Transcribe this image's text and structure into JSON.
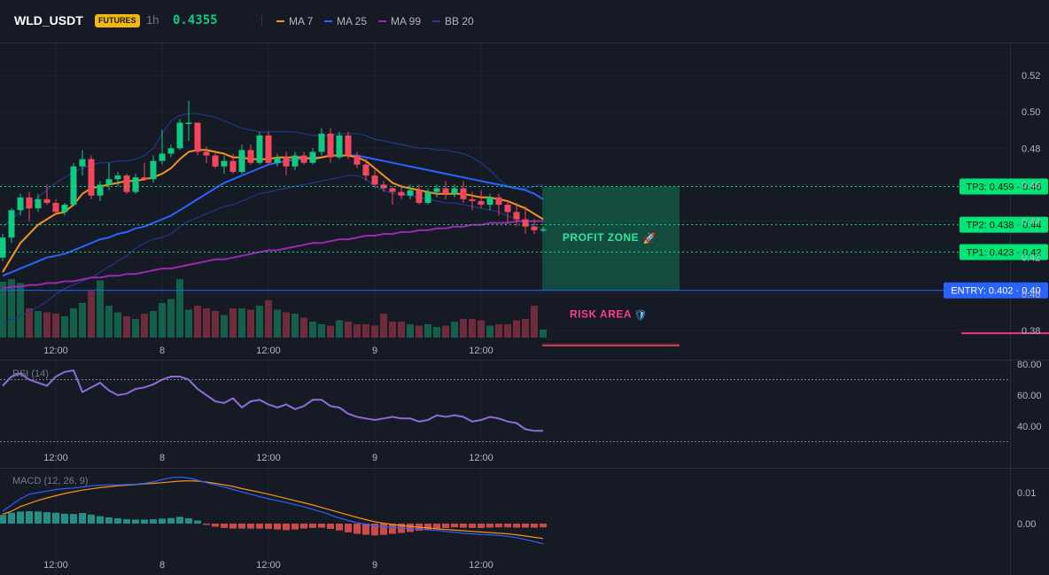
{
  "header": {
    "symbol": "WLD_USDT",
    "badge": "FUTURES",
    "interval": "1h",
    "price": "0.4355",
    "legend": [
      {
        "label": "MA 7",
        "color": "#f7931a"
      },
      {
        "label": "MA 25",
        "color": "#2962ff"
      },
      {
        "label": "MA 99",
        "color": "#9c27b0"
      },
      {
        "label": "BB 20",
        "color": "#1e3a8a"
      }
    ]
  },
  "colors": {
    "up": "#0ecb81",
    "down": "#f6465d",
    "ma7": "#f7931a",
    "ma25": "#2962ff",
    "ma99": "#9c27b0",
    "bb": "#1e3a8a",
    "tp": "#00e676",
    "entry": "#2962ff",
    "profit": "#0ecb81",
    "risk": "#f6465d",
    "rsi": "#8e6bd8",
    "macd": "#2962ff",
    "signal": "#f7931a"
  },
  "chart_data": [
    {
      "type": "candlestick",
      "name": "price",
      "yticks": [
        "0.52",
        "0.50",
        "0.48",
        "0.46",
        "0.44",
        "0.42",
        "0.40",
        "0.38"
      ],
      "ylim": [
        0.374,
        0.537
      ],
      "xticks": [
        {
          "label": "12:00",
          "index": 6
        },
        {
          "label": "8",
          "index": 18
        },
        {
          "label": "12:00",
          "index": 30
        },
        {
          "label": "9",
          "index": 42
        },
        {
          "label": "12:00",
          "index": 54
        }
      ],
      "candles": [
        [
          0.42,
          0.433,
          0.418,
          0.431
        ],
        [
          0.431,
          0.447,
          0.428,
          0.446
        ],
        [
          0.446,
          0.455,
          0.443,
          0.453
        ],
        [
          0.453,
          0.456,
          0.44,
          0.447
        ],
        [
          0.447,
          0.455,
          0.445,
          0.452
        ],
        [
          0.452,
          0.46,
          0.449,
          0.45
        ],
        [
          0.45,
          0.452,
          0.444,
          0.445
        ],
        [
          0.445,
          0.45,
          0.443,
          0.449
        ],
        [
          0.449,
          0.472,
          0.448,
          0.47
        ],
        [
          0.47,
          0.479,
          0.465,
          0.474
        ],
        [
          0.474,
          0.476,
          0.452,
          0.454
        ],
        [
          0.454,
          0.462,
          0.451,
          0.46
        ],
        [
          0.46,
          0.472,
          0.457,
          0.463
        ],
        [
          0.463,
          0.467,
          0.459,
          0.465
        ],
        [
          0.465,
          0.466,
          0.455,
          0.456
        ],
        [
          0.456,
          0.466,
          0.455,
          0.464
        ],
        [
          0.464,
          0.472,
          0.462,
          0.463
        ],
        [
          0.463,
          0.476,
          0.461,
          0.473
        ],
        [
          0.473,
          0.49,
          0.471,
          0.477
        ],
        [
          0.477,
          0.482,
          0.475,
          0.48
        ],
        [
          0.48,
          0.496,
          0.479,
          0.494
        ],
        [
          0.494,
          0.506,
          0.484,
          0.494
        ],
        [
          0.494,
          0.493,
          0.476,
          0.478
        ],
        [
          0.478,
          0.481,
          0.472,
          0.476
        ],
        [
          0.476,
          0.478,
          0.469,
          0.47
        ],
        [
          0.47,
          0.476,
          0.466,
          0.473
        ],
        [
          0.473,
          0.477,
          0.466,
          0.467
        ],
        [
          0.467,
          0.482,
          0.466,
          0.479
        ],
        [
          0.479,
          0.482,
          0.471,
          0.472
        ],
        [
          0.472,
          0.489,
          0.471,
          0.487
        ],
        [
          0.487,
          0.489,
          0.471,
          0.472
        ],
        [
          0.472,
          0.477,
          0.47,
          0.475
        ],
        [
          0.475,
          0.478,
          0.465,
          0.47
        ],
        [
          0.47,
          0.478,
          0.468,
          0.476
        ],
        [
          0.476,
          0.478,
          0.471,
          0.472
        ],
        [
          0.472,
          0.48,
          0.471,
          0.478
        ],
        [
          0.478,
          0.491,
          0.476,
          0.488
        ],
        [
          0.488,
          0.491,
          0.472,
          0.475
        ],
        [
          0.475,
          0.489,
          0.474,
          0.487
        ],
        [
          0.487,
          0.489,
          0.474,
          0.476
        ],
        [
          0.476,
          0.478,
          0.469,
          0.471
        ],
        [
          0.471,
          0.474,
          0.462,
          0.465
        ],
        [
          0.465,
          0.468,
          0.458,
          0.46
        ],
        [
          0.46,
          0.462,
          0.456,
          0.458
        ],
        [
          0.458,
          0.459,
          0.449,
          0.456
        ],
        [
          0.456,
          0.46,
          0.452,
          0.454
        ],
        [
          0.454,
          0.46,
          0.452,
          0.457
        ],
        [
          0.457,
          0.46,
          0.449,
          0.45
        ],
        [
          0.45,
          0.458,
          0.449,
          0.456
        ],
        [
          0.456,
          0.46,
          0.453,
          0.458
        ],
        [
          0.458,
          0.462,
          0.452,
          0.455
        ],
        [
          0.455,
          0.46,
          0.453,
          0.458
        ],
        [
          0.458,
          0.462,
          0.45,
          0.452
        ],
        [
          0.452,
          0.456,
          0.446,
          0.451
        ],
        [
          0.451,
          0.457,
          0.447,
          0.449
        ],
        [
          0.449,
          0.455,
          0.446,
          0.453
        ],
        [
          0.453,
          0.455,
          0.443,
          0.449
        ],
        [
          0.449,
          0.451,
          0.439,
          0.445
        ],
        [
          0.445,
          0.45,
          0.437,
          0.441
        ],
        [
          0.441,
          0.448,
          0.433,
          0.437
        ],
        [
          0.437,
          0.441,
          0.433,
          0.435
        ],
        [
          0.435,
          0.437,
          0.434,
          0.4355
        ]
      ],
      "volume": [
        42,
        44,
        41,
        22,
        20,
        19,
        18,
        16,
        22,
        26,
        35,
        43,
        24,
        19,
        16,
        14,
        18,
        20,
        26,
        29,
        44,
        21,
        24,
        22,
        20,
        17,
        22,
        22,
        21,
        24,
        28,
        21,
        19,
        18,
        15,
        12,
        10,
        9,
        13,
        12,
        10,
        10,
        9,
        18,
        12,
        12,
        10,
        9,
        10,
        8,
        9,
        12,
        14,
        14,
        13,
        9,
        10,
        10,
        13,
        14,
        24,
        6
      ],
      "ma7": [
        0.412,
        0.42,
        0.428,
        0.433,
        0.438,
        0.441,
        0.444,
        0.445,
        0.449,
        0.455,
        0.458,
        0.459,
        0.46,
        0.461,
        0.462,
        0.462,
        0.463,
        0.464,
        0.466,
        0.469,
        0.474,
        0.478,
        0.479,
        0.479,
        0.478,
        0.477,
        0.475,
        0.475,
        0.474,
        0.474,
        0.474,
        0.475,
        0.475,
        0.475,
        0.475,
        0.474,
        0.475,
        0.476,
        0.476,
        0.476,
        0.475,
        0.473,
        0.469,
        0.465,
        0.461,
        0.459,
        0.458,
        0.457,
        0.456,
        0.455,
        0.455,
        0.455,
        0.455,
        0.454,
        0.453,
        0.453,
        0.452,
        0.451,
        0.449,
        0.447,
        0.444,
        0.441
      ],
      "ma25": [
        0.41,
        0.412,
        0.414,
        0.416,
        0.418,
        0.42,
        0.421,
        0.422,
        0.424,
        0.426,
        0.428,
        0.43,
        0.431,
        0.433,
        0.434,
        0.436,
        0.437,
        0.439,
        0.441,
        0.443,
        0.446,
        0.449,
        0.452,
        0.455,
        0.458,
        0.461,
        0.463,
        0.465,
        0.467,
        0.469,
        0.471,
        0.472,
        0.473,
        0.474,
        0.474,
        0.475,
        0.475,
        0.476,
        0.476,
        0.476,
        0.476,
        0.475,
        0.474,
        0.473,
        0.472,
        0.471,
        0.47,
        0.469,
        0.468,
        0.467,
        0.466,
        0.465,
        0.464,
        0.463,
        0.462,
        0.461,
        0.46,
        0.459,
        0.458,
        0.457,
        0.455,
        0.452
      ],
      "ma99": [
        0.403,
        0.404,
        0.404,
        0.405,
        0.405,
        0.406,
        0.406,
        0.407,
        0.407,
        0.408,
        0.409,
        0.409,
        0.41,
        0.41,
        0.411,
        0.411,
        0.412,
        0.413,
        0.414,
        0.414,
        0.415,
        0.416,
        0.417,
        0.418,
        0.419,
        0.419,
        0.42,
        0.421,
        0.422,
        0.423,
        0.424,
        0.424,
        0.425,
        0.426,
        0.427,
        0.428,
        0.428,
        0.429,
        0.43,
        0.43,
        0.431,
        0.432,
        0.432,
        0.433,
        0.433,
        0.434,
        0.434,
        0.435,
        0.435,
        0.436,
        0.436,
        0.437,
        0.437,
        0.438,
        0.438,
        0.439,
        0.439,
        0.439,
        0.44,
        0.44,
        0.44,
        0.44
      ],
      "bb_upper": [
        0.437,
        0.441,
        0.445,
        0.449,
        0.453,
        0.457,
        0.461,
        0.464,
        0.467,
        0.469,
        0.471,
        0.472,
        0.472,
        0.473,
        0.473,
        0.474,
        0.476,
        0.48,
        0.488,
        0.495,
        0.498,
        0.499,
        0.499,
        0.498,
        0.497,
        0.495,
        0.493,
        0.491,
        0.49,
        0.489,
        0.489,
        0.489,
        0.489,
        0.489,
        0.488,
        0.487,
        0.487,
        0.487,
        0.488,
        0.488,
        0.488,
        0.487,
        0.485,
        0.484,
        0.483,
        0.482,
        0.481,
        0.48,
        0.48,
        0.479,
        0.479,
        0.478,
        0.477,
        0.475,
        0.472,
        0.468,
        0.463,
        0.459,
        0.458,
        0.458,
        0.459,
        0.46
      ],
      "bb_lower": [
        0.384,
        0.386,
        0.388,
        0.39,
        0.393,
        0.396,
        0.4,
        0.403,
        0.405,
        0.407,
        0.409,
        0.412,
        0.415,
        0.418,
        0.421,
        0.425,
        0.428,
        0.43,
        0.431,
        0.433,
        0.437,
        0.44,
        0.442,
        0.444,
        0.446,
        0.448,
        0.449,
        0.451,
        0.453,
        0.455,
        0.456,
        0.457,
        0.458,
        0.459,
        0.46,
        0.461,
        0.462,
        0.463,
        0.464,
        0.465,
        0.465,
        0.463,
        0.459,
        0.457,
        0.455,
        0.455,
        0.454,
        0.453,
        0.452,
        0.451,
        0.45,
        0.45,
        0.449,
        0.448,
        0.447,
        0.446,
        0.445,
        0.443,
        0.441,
        0.439,
        0.437,
        0.436
      ]
    },
    {
      "type": "line",
      "name": "RSI (14)",
      "yticks": [
        "80.00",
        "60.00",
        "40.00"
      ],
      "ylim": [
        28,
        80
      ],
      "levels": [
        70,
        30
      ],
      "xticks": [
        {
          "label": "12:00",
          "index": 6
        },
        {
          "label": "8",
          "index": 18
        },
        {
          "label": "12:00",
          "index": 30
        },
        {
          "label": "9",
          "index": 42
        },
        {
          "label": "12:00",
          "index": 54
        }
      ],
      "values": [
        66,
        72,
        74,
        70,
        68,
        66,
        72,
        75,
        76,
        62,
        65,
        68,
        63,
        60,
        61,
        64,
        65,
        67,
        70,
        72,
        72,
        70,
        64,
        60,
        56,
        55,
        58,
        52,
        56,
        57,
        54,
        52,
        54,
        51,
        53,
        57,
        57,
        53,
        52,
        48,
        46,
        45,
        44,
        45,
        46,
        45,
        45,
        43,
        44,
        47,
        46,
        47,
        46,
        43,
        44,
        46,
        45,
        43,
        42,
        38,
        37,
        37
      ]
    },
    {
      "type": "bar+line",
      "name": "MACD (12, 26, 9)",
      "yticks": [
        "0.01",
        "0.00"
      ],
      "ylim": [
        -0.009,
        0.018
      ],
      "histogram": [
        0.0028,
        0.0035,
        0.0039,
        0.004,
        0.0039,
        0.0037,
        0.0035,
        0.0032,
        0.0031,
        0.0034,
        0.0029,
        0.0024,
        0.002,
        0.0017,
        0.0014,
        0.0013,
        0.0013,
        0.0014,
        0.0016,
        0.0018,
        0.0022,
        0.0017,
        0.001,
        -0.0004,
        -0.001,
        -0.0014,
        -0.0016,
        -0.0016,
        -0.0016,
        -0.0016,
        -0.0017,
        -0.0019,
        -0.0021,
        -0.0019,
        -0.0016,
        -0.0014,
        -0.0013,
        -0.0017,
        -0.0022,
        -0.0028,
        -0.0033,
        -0.0036,
        -0.0038,
        -0.0036,
        -0.0033,
        -0.003,
        -0.0027,
        -0.0023,
        -0.0019,
        -0.0016,
        -0.0014,
        -0.0012,
        -0.0013,
        -0.0014,
        -0.0014,
        -0.0013,
        -0.0012,
        -0.0012,
        -0.0013,
        -0.0013,
        -0.0013,
        -0.0012
      ],
      "macd": [
        0.004,
        0.006,
        0.008,
        0.0095,
        0.01,
        0.0105,
        0.011,
        0.0113,
        0.0115,
        0.0118,
        0.0122,
        0.0124,
        0.0125,
        0.0125,
        0.0126,
        0.0127,
        0.013,
        0.0135,
        0.0142,
        0.0148,
        0.015,
        0.0147,
        0.014,
        0.0132,
        0.0125,
        0.0118,
        0.011,
        0.0102,
        0.0095,
        0.0087,
        0.008,
        0.0074,
        0.0068,
        0.0061,
        0.0054,
        0.0046,
        0.0038,
        0.0028,
        0.0018,
        0.001,
        0.0003,
        -0.0002,
        -0.0007,
        -0.001,
        -0.0012,
        -0.0014,
        -0.0016,
        -0.0018,
        -0.002,
        -0.0022,
        -0.0025,
        -0.0028,
        -0.0031,
        -0.0033,
        -0.0035,
        -0.0036,
        -0.0038,
        -0.0041,
        -0.0045,
        -0.0051,
        -0.0058,
        -0.0065
      ],
      "signal": [
        0.003,
        0.004,
        0.0055,
        0.0065,
        0.0075,
        0.0083,
        0.009,
        0.0097,
        0.0103,
        0.0108,
        0.0112,
        0.0116,
        0.0119,
        0.0122,
        0.0124,
        0.0126,
        0.0128,
        0.013,
        0.0132,
        0.0135,
        0.0137,
        0.0138,
        0.0137,
        0.0134,
        0.013,
        0.0125,
        0.012,
        0.0113,
        0.0107,
        0.0101,
        0.0095,
        0.0088,
        0.0081,
        0.0074,
        0.0067,
        0.006,
        0.0052,
        0.0044,
        0.0036,
        0.0028,
        0.002,
        0.0013,
        0.0006,
        0.0001,
        -0.0003,
        -0.0006,
        -0.0009,
        -0.0012,
        -0.0014,
        -0.0017,
        -0.0019,
        -0.0021,
        -0.0023,
        -0.0025,
        -0.0027,
        -0.0029,
        -0.0031,
        -0.0033,
        -0.0036,
        -0.004,
        -0.0044,
        -0.0048
      ],
      "xticks": [
        {
          "label": "12:00",
          "index": 6
        },
        {
          "label": "8",
          "index": 18
        },
        {
          "label": "12:00",
          "index": 30
        },
        {
          "label": "9",
          "index": 42
        },
        {
          "label": "12:00",
          "index": 54
        }
      ]
    }
  ],
  "trade_levels": [
    {
      "label": "TP3: 0.459 · 0.46",
      "value": 0.459,
      "kind": "tp"
    },
    {
      "label": "TP2: 0.438 · 0.44",
      "value": 0.438,
      "kind": "tp"
    },
    {
      "label": "TP1: 0.423 · 0.42",
      "value": 0.423,
      "kind": "tp"
    },
    {
      "label": "ENTRY: 0.402 · 0.40",
      "value": 0.402,
      "kind": "entry"
    }
  ],
  "zones": {
    "profit": {
      "label": "PROFIT ZONE",
      "icon": "🚀",
      "from": 0.402,
      "to": 0.459
    },
    "risk": {
      "label": "RISK AREA",
      "icon": "🛡",
      "from": 0.373,
      "to": 0.402
    }
  },
  "stop_value": 0.3785
}
